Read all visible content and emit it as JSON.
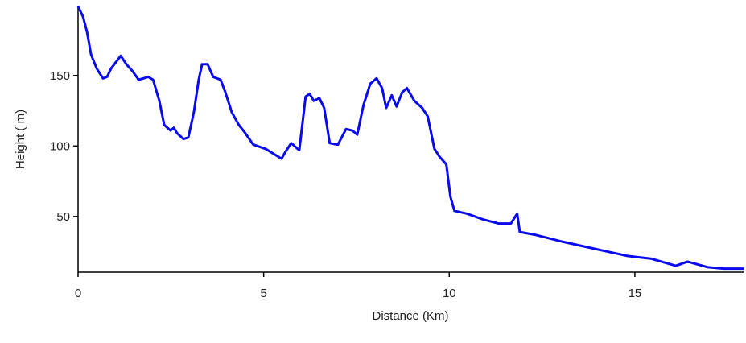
{
  "chart_data": {
    "type": "line",
    "x_label": "Distance (Km)",
    "y_label": "Height ( m)",
    "series": [
      {
        "color": "#0a0aef",
        "x": [
          0,
          0.13,
          0.24,
          0.35,
          0.5,
          0.67,
          0.78,
          0.89,
          1.15,
          1.3,
          1.47,
          1.63,
          1.76,
          1.89,
          2.02,
          2.19,
          2.32,
          2.49,
          2.58,
          2.67,
          2.84,
          2.97,
          3.12,
          3.25,
          3.34,
          3.49,
          3.64,
          3.84,
          3.97,
          4.14,
          4.33,
          4.51,
          4.72,
          5.05,
          5.48,
          5.59,
          5.74,
          5.96,
          6.13,
          6.24,
          6.35,
          6.5,
          6.63,
          6.78,
          7.0,
          7.22,
          7.39,
          7.52,
          7.69,
          7.87,
          8.04,
          8.19,
          8.3,
          8.45,
          8.58,
          8.73,
          8.86,
          9.06,
          9.27,
          9.42,
          9.6,
          9.75,
          9.92,
          10.03,
          10.14,
          10.47,
          10.9,
          11.33,
          11.66,
          11.83,
          11.9,
          12.31,
          13.07,
          13.93,
          14.8,
          15.45,
          16.1,
          16.42,
          16.97,
          17.4,
          17.94
        ],
        "values": [
          199,
          192,
          181,
          165,
          155,
          148,
          149,
          155,
          164,
          158,
          153,
          147,
          148,
          149,
          147,
          132,
          115,
          111,
          113,
          109,
          105,
          106,
          124,
          147,
          158,
          158,
          149,
          147,
          138,
          124,
          115,
          109,
          101,
          98,
          91,
          96,
          102,
          97,
          135,
          137,
          132,
          134,
          127,
          102,
          101,
          112,
          111,
          108,
          129,
          144,
          148,
          141,
          127,
          136,
          128,
          138,
          141,
          132,
          127,
          121,
          98,
          92,
          87,
          64,
          54,
          52,
          48,
          45,
          45,
          52,
          39,
          37,
          32,
          27,
          22,
          20,
          15,
          18,
          14,
          13,
          13
        ]
      }
    ],
    "xlim": [
      0,
      17.95
    ],
    "ylim": [
      10.5,
      199
    ],
    "xticks": [
      0,
      5,
      10,
      15
    ],
    "yticks": [
      50,
      100,
      150
    ]
  }
}
